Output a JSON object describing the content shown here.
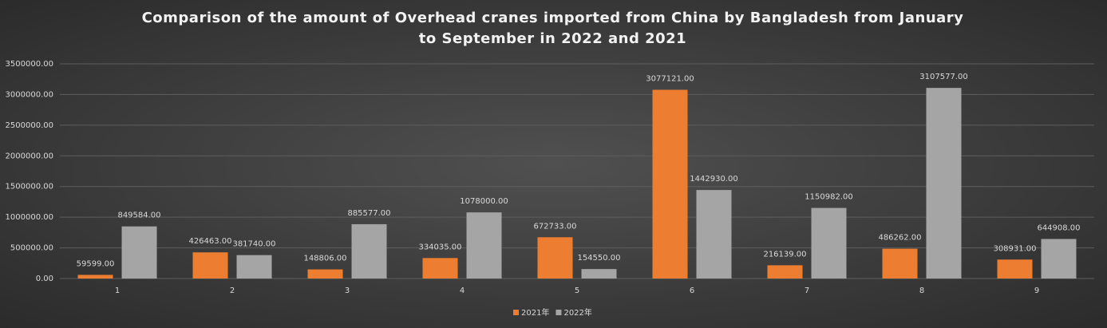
{
  "chart_data": {
    "type": "bar",
    "title": "Comparison of the amount of Overhead cranes imported from China by Bangladesh from January to September in 2022 and 2021",
    "categories": [
      "1",
      "2",
      "3",
      "4",
      "5",
      "6",
      "7",
      "8",
      "9"
    ],
    "series": [
      {
        "name": "2021年",
        "color": "#ed7d31",
        "values": [
          59599,
          426463,
          148806,
          334035,
          672733,
          3077121,
          216139,
          486262,
          308931
        ],
        "value_labels": [
          "59599.00",
          "426463.00",
          "148806.00",
          "334035.00",
          "672733.00",
          "3077121.00",
          "216139.00",
          "486262.00",
          "308931.00"
        ]
      },
      {
        "name": "2022年",
        "color": "#a5a5a5",
        "values": [
          849584,
          381740,
          885577,
          1078000,
          154550,
          1442930,
          1150982,
          3107577,
          644908
        ],
        "value_labels": [
          "849584.00",
          "381740.00",
          "885577.00",
          "1078000.00",
          "154550.00",
          "1442930.00",
          "1150982.00",
          "3107577.00",
          "644908.00"
        ]
      }
    ],
    "ylim": [
      0,
      3500000
    ],
    "yticks": [
      {
        "value": 0,
        "label": "0.00"
      },
      {
        "value": 500000,
        "label": "500000.00"
      },
      {
        "value": 1000000,
        "label": "1000000.00"
      },
      {
        "value": 1500000,
        "label": "1500000.00"
      },
      {
        "value": 2000000,
        "label": "2000000.00"
      },
      {
        "value": 2500000,
        "label": "2500000.00"
      },
      {
        "value": 3000000,
        "label": "3000000.00"
      },
      {
        "value": 3500000,
        "label": "3500000.00"
      }
    ],
    "grid": true,
    "legend": "bottom"
  }
}
